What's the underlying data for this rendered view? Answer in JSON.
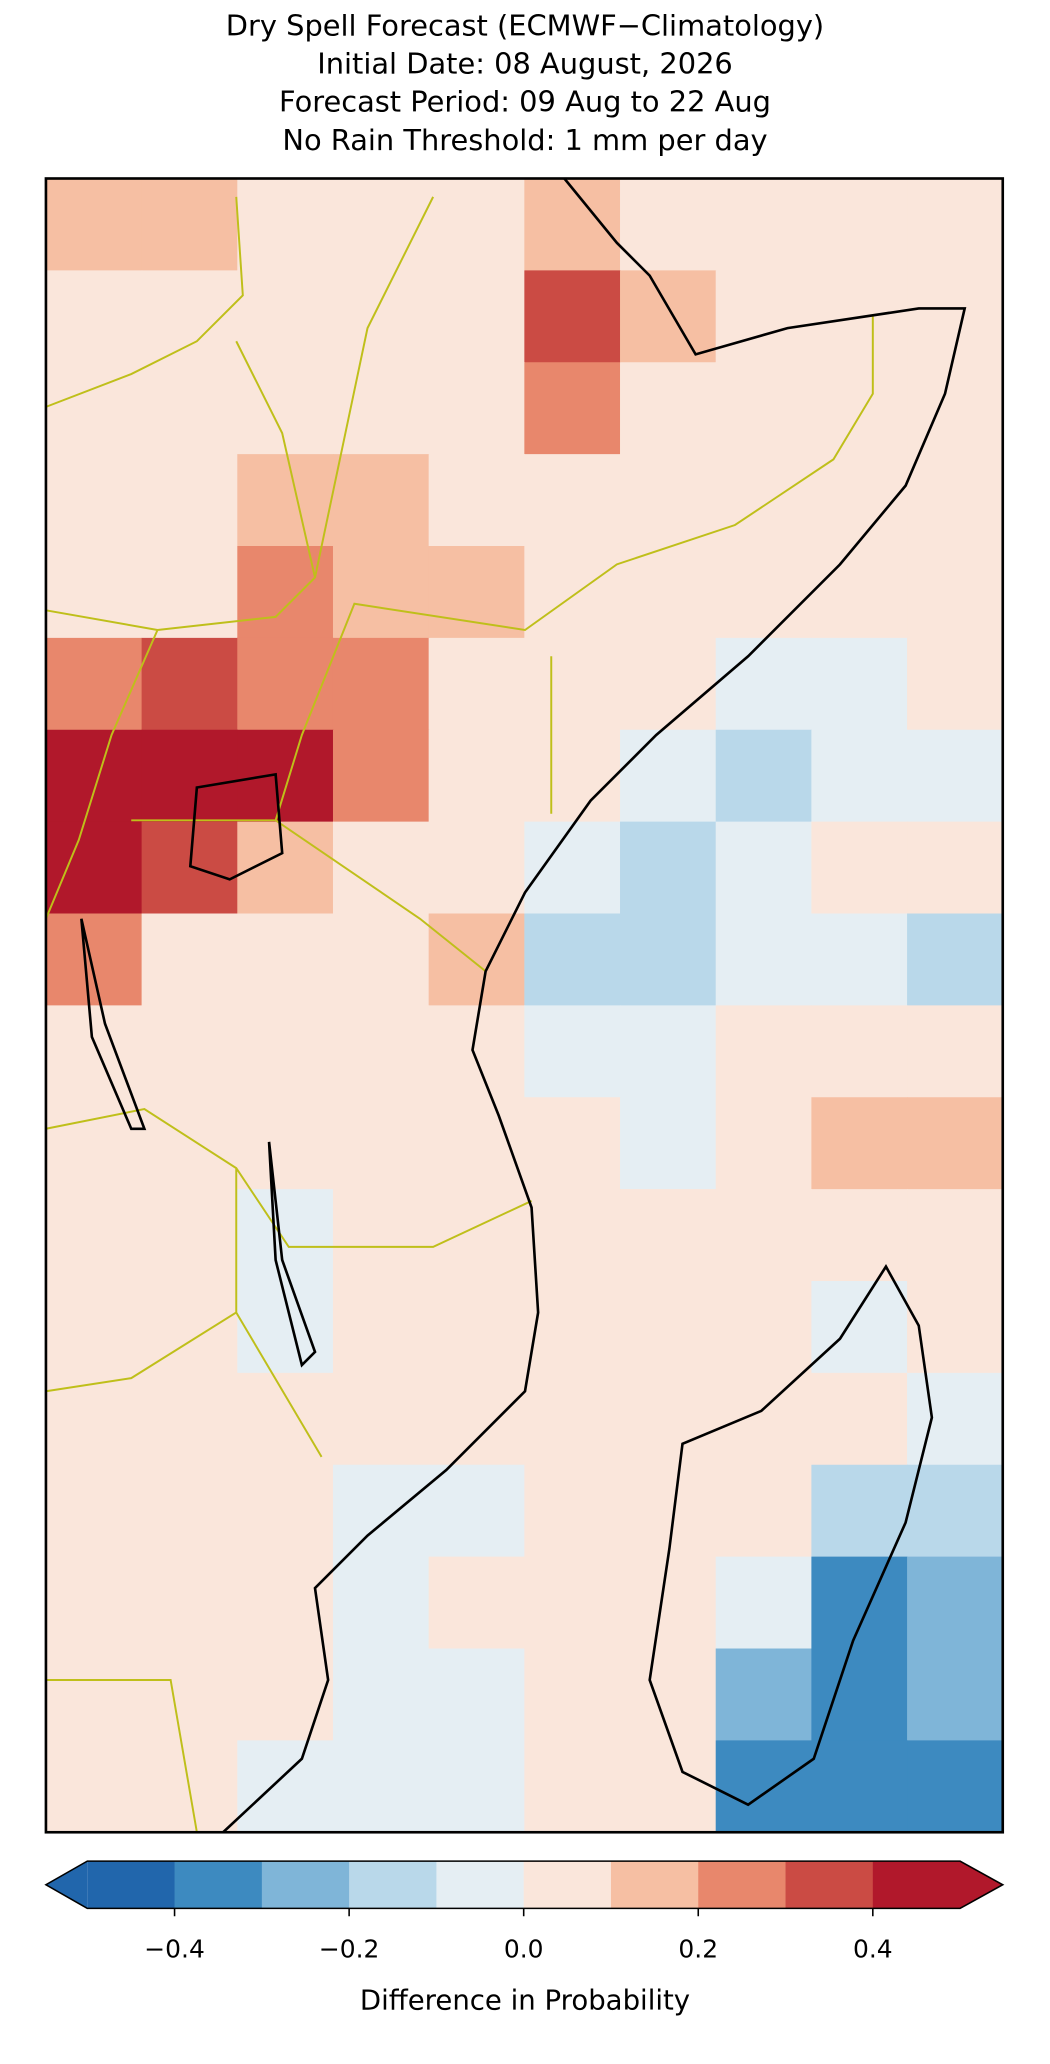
{
  "title_lines": [
    "Dry Spell Forecast (ECMWF−Climatology)",
    "Initial Date: 08 August, 2026",
    "Forecast Period: 09 Aug to 22 Aug",
    "No Rain Threshold: 1 mm per day"
  ],
  "map": {
    "values": [
      [
        0.1,
        0.1,
        0.05,
        0.05,
        0.05,
        0.15,
        0.05,
        0.05,
        0.05,
        0.05
      ],
      [
        0,
        0,
        0,
        0.05,
        0.05,
        0.3,
        0.1,
        0.05,
        0.05,
        0.05
      ],
      [
        0.05,
        0,
        0,
        0.05,
        0.05,
        0.2,
        0.05,
        0.05,
        0.05,
        0.05
      ],
      [
        0.05,
        0,
        0.1,
        0.15,
        0.05,
        0.05,
        0.05,
        0.05,
        0.05,
        0.05
      ],
      [
        0.05,
        0.05,
        0.25,
        0.15,
        0.15,
        0.05,
        0.05,
        0.05,
        0.05,
        0.05
      ],
      [
        0.2,
        0.35,
        0.2,
        0.2,
        0.05,
        0.05,
        0.05,
        -0.1,
        -0.05,
        0
      ],
      [
        0.45,
        0.45,
        0.45,
        0.25,
        0.05,
        0.05,
        -0.1,
        -0.15,
        -0.05,
        -0.1
      ],
      [
        0.4,
        0.35,
        0.15,
        0.05,
        0.05,
        -0.05,
        -0.15,
        -0.1,
        0,
        0
      ],
      [
        0.2,
        0.05,
        0.05,
        0.05,
        0.1,
        -0.15,
        -0.15,
        -0.05,
        -0.05,
        -0.15
      ],
      [
        0.05,
        0.05,
        0.05,
        0.05,
        0.05,
        -0.1,
        -0.05,
        0,
        0,
        0.05
      ],
      [
        0.05,
        0.05,
        0.05,
        0.05,
        0.05,
        0,
        -0.05,
        0.05,
        0.1,
        0.1
      ],
      [
        0.05,
        0.05,
        -0.1,
        0.05,
        0.05,
        0,
        0,
        0,
        0.05,
        0
      ],
      [
        0.05,
        0,
        -0.05,
        0.05,
        0,
        0,
        0,
        0.05,
        -0.05,
        0.05
      ],
      [
        0.05,
        0.05,
        0.05,
        0,
        0,
        0,
        0.05,
        0.05,
        0.05,
        -0.1
      ],
      [
        0,
        0.05,
        0.05,
        -0.05,
        -0.05,
        0,
        0.05,
        0.05,
        -0.15,
        -0.2
      ],
      [
        0.05,
        0.05,
        0,
        -0.05,
        0,
        0,
        0.05,
        -0.1,
        -0.35,
        -0.3
      ],
      [
        0.05,
        0.05,
        0,
        -0.1,
        -0.05,
        0,
        0.05,
        -0.3,
        -0.4,
        -0.3
      ],
      [
        0.05,
        0,
        -0.1,
        -0.1,
        -0.05,
        0,
        0.05,
        -0.4,
        -0.4,
        -0.35
      ]
    ]
  },
  "colorbar": {
    "label": "Difference in Probability",
    "bounds": [
      -0.5,
      -0.4,
      -0.3,
      -0.2,
      -0.1,
      0,
      0.1,
      0.2,
      0.3,
      0.4,
      0.5
    ],
    "colors": [
      "#2166ac",
      "#3d8ac0",
      "#7fb5d8",
      "#b9d8ea",
      "#e5eef3",
      "#fae6db",
      "#f6bfa3",
      "#e8876c",
      "#cb4b44",
      "#b1182b"
    ],
    "ticks": [
      {
        "value": -0.4,
        "label": "−0.4"
      },
      {
        "value": -0.2,
        "label": "−0.2"
      },
      {
        "value": 0,
        "label": "0.0"
      },
      0.2,
      0.4
    ]
  }
}
